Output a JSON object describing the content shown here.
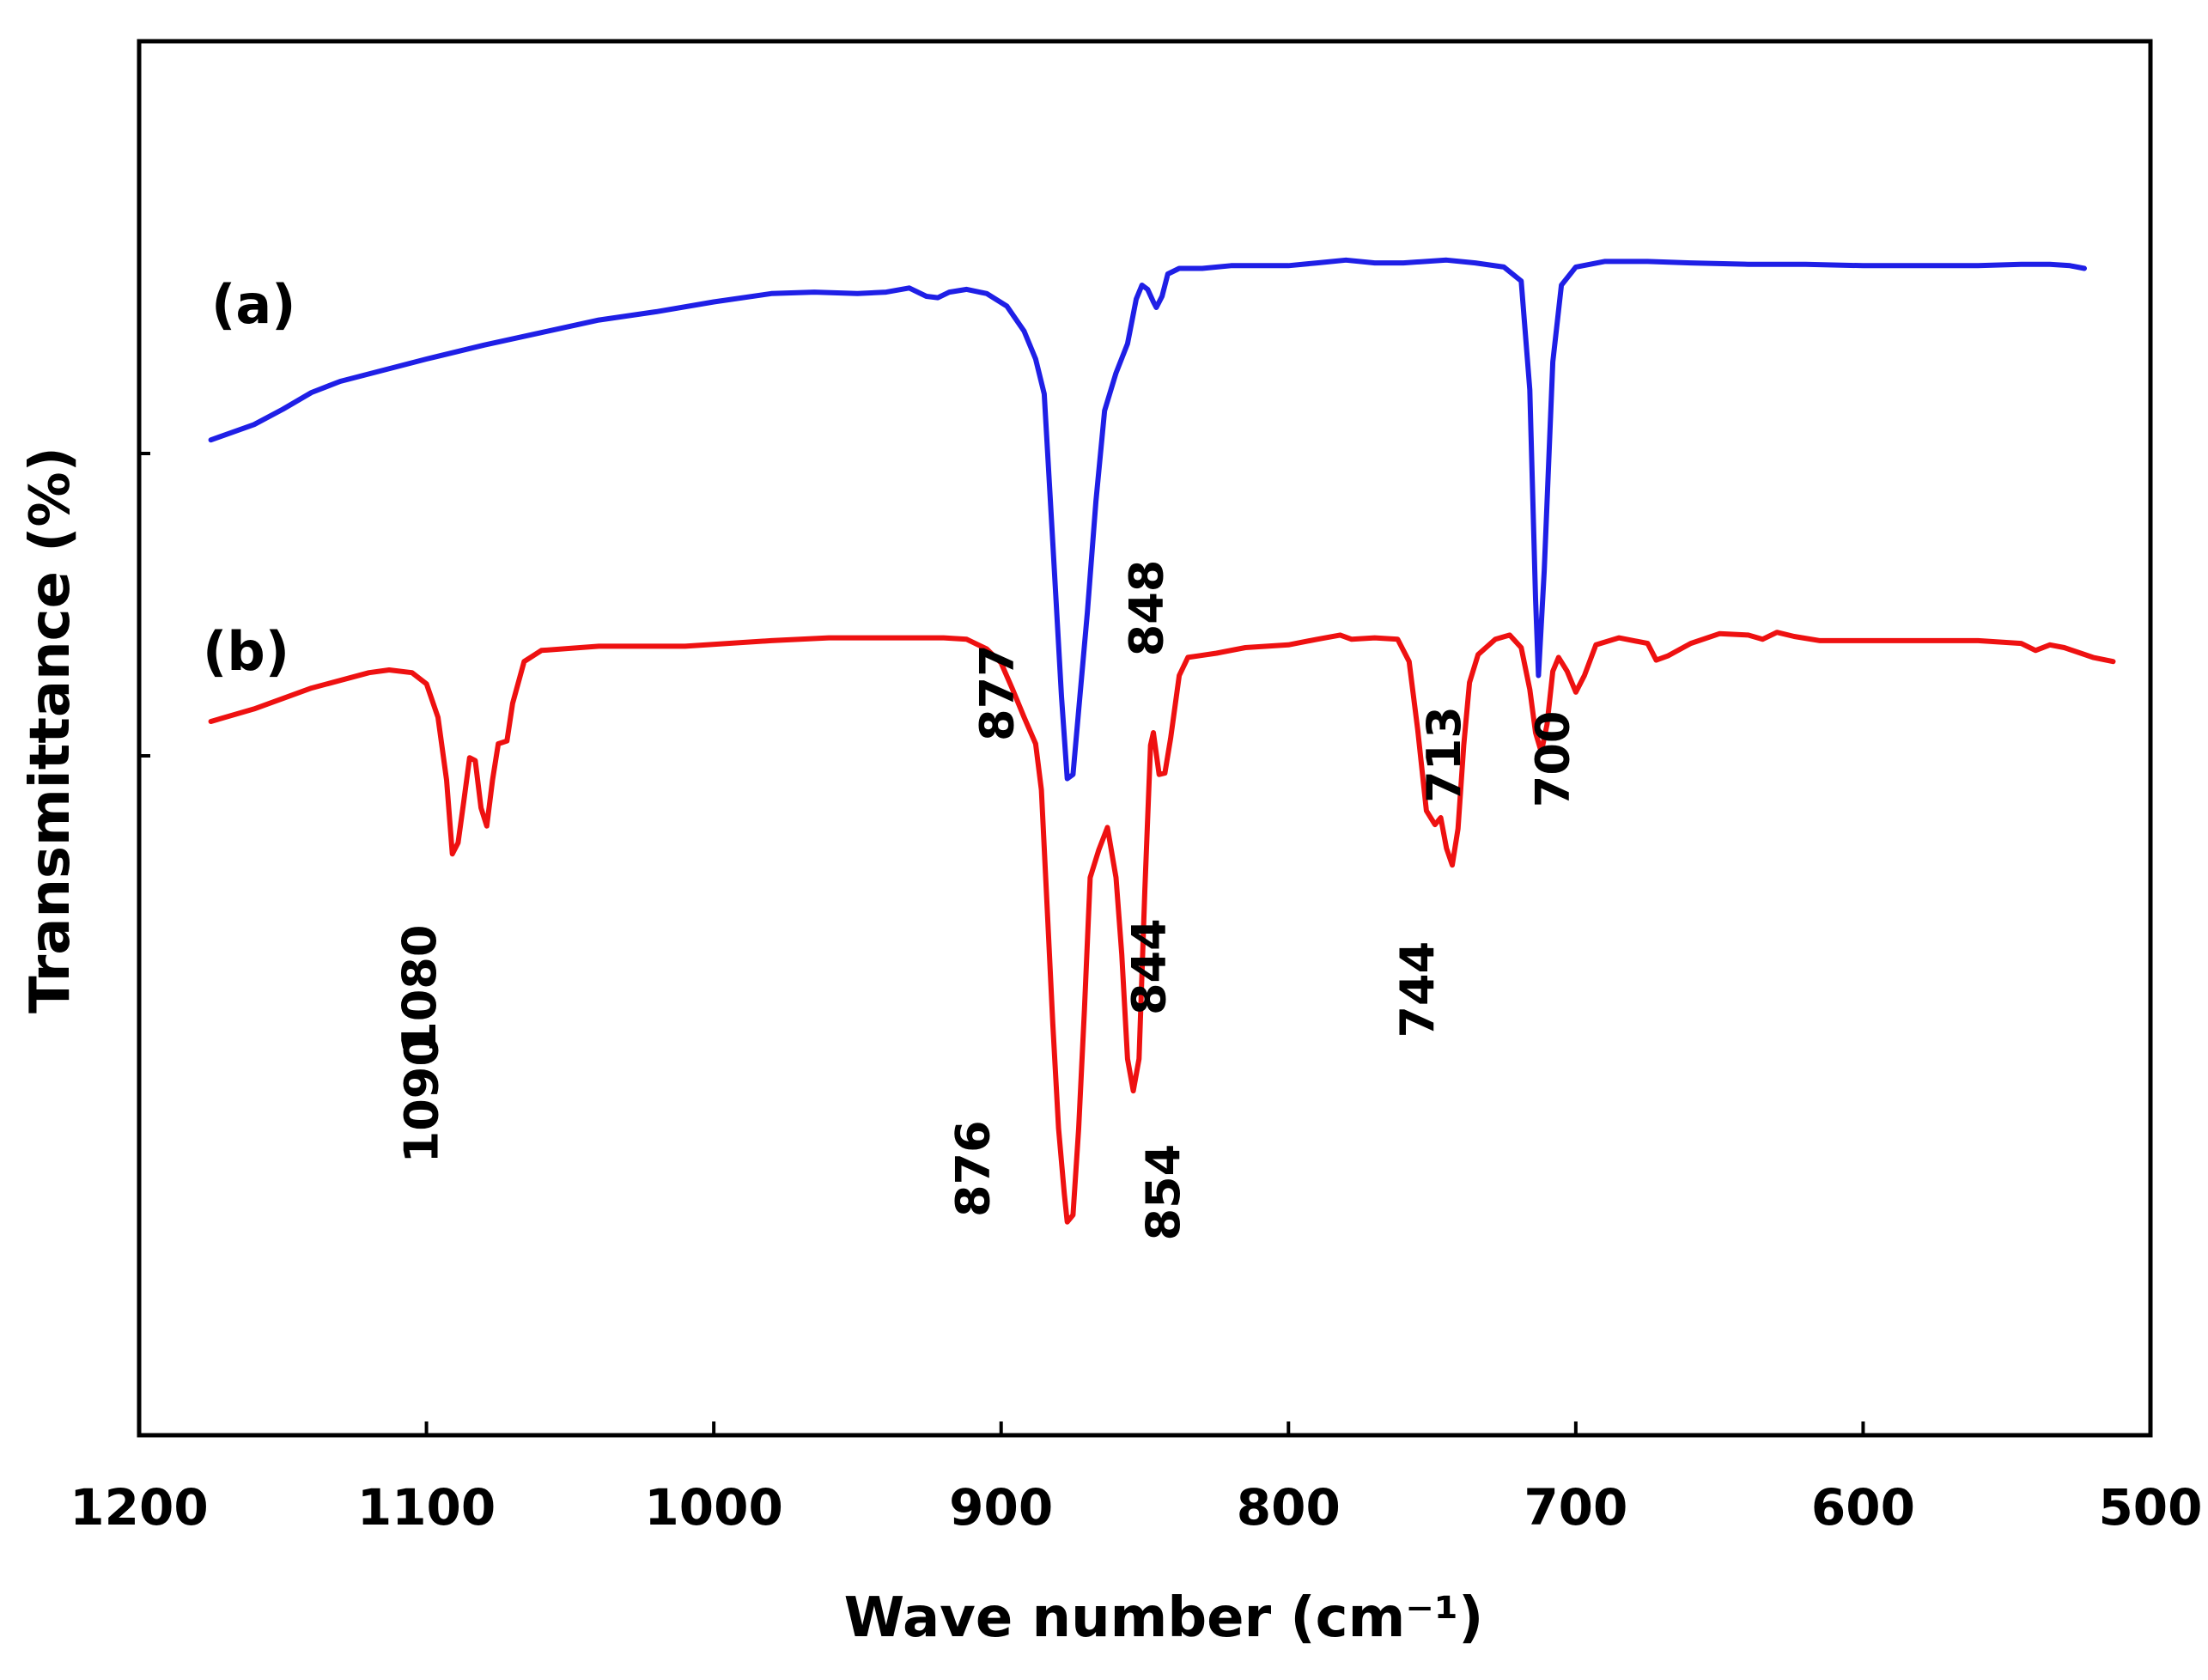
{
  "chart_data": {
    "type": "line",
    "title": "",
    "xlabel": "Wave number (cm⁻¹)",
    "ylabel": "Transmittance (%)",
    "xlim": [
      1200,
      500
    ],
    "ylim": [
      0,
      100
    ],
    "x_reversed": true,
    "grid": false,
    "xticks": [
      1200,
      1100,
      1000,
      900,
      800,
      700,
      600,
      500
    ],
    "xtick_labels": [
      "1200",
      "1100",
      "1000",
      "900",
      "800",
      "700",
      "600",
      "500"
    ],
    "colors": {
      "a": "#1f1fe6",
      "b": "#ee1111",
      "axis": "#000000"
    },
    "series": [
      {
        "name": "(a)",
        "color": "#1f1fe6",
        "points": [
          [
            1175,
            71.4
          ],
          [
            1160,
            72.5
          ],
          [
            1150,
            73.6
          ],
          [
            1140,
            74.8
          ],
          [
            1130,
            75.6
          ],
          [
            1115,
            76.4
          ],
          [
            1100,
            77.2
          ],
          [
            1080,
            78.2
          ],
          [
            1060,
            79.1
          ],
          [
            1040,
            80.0
          ],
          [
            1020,
            80.6
          ],
          [
            1000,
            81.3
          ],
          [
            980,
            81.9
          ],
          [
            965,
            82.0
          ],
          [
            950,
            81.9
          ],
          [
            940,
            82.0
          ],
          [
            932,
            82.3
          ],
          [
            926,
            81.7
          ],
          [
            922,
            81.6
          ],
          [
            918,
            82.0
          ],
          [
            912,
            82.2
          ],
          [
            905,
            81.9
          ],
          [
            898,
            81.0
          ],
          [
            892,
            79.2
          ],
          [
            888,
            77.2
          ],
          [
            885,
            74.7
          ],
          [
            882,
            64.0
          ],
          [
            879,
            53.0
          ],
          [
            877,
            47.1
          ],
          [
            875,
            47.4
          ],
          [
            873,
            52.0
          ],
          [
            870,
            59.0
          ],
          [
            867,
            67.0
          ],
          [
            864,
            73.5
          ],
          [
            860,
            76.2
          ],
          [
            856,
            78.3
          ],
          [
            853,
            81.5
          ],
          [
            851,
            82.5
          ],
          [
            849,
            82.2
          ],
          [
            847,
            81.3
          ],
          [
            846,
            80.9
          ],
          [
            844,
            81.7
          ],
          [
            842,
            83.3
          ],
          [
            838,
            83.7
          ],
          [
            830,
            83.7
          ],
          [
            820,
            83.9
          ],
          [
            800,
            83.9
          ],
          [
            790,
            84.1
          ],
          [
            780,
            84.3
          ],
          [
            770,
            84.1
          ],
          [
            760,
            84.1
          ],
          [
            745,
            84.3
          ],
          [
            735,
            84.1
          ],
          [
            725,
            83.8
          ],
          [
            719,
            82.8
          ],
          [
            716,
            75.0
          ],
          [
            714,
            60.0
          ],
          [
            713,
            54.5
          ],
          [
            711,
            62.0
          ],
          [
            708,
            77.0
          ],
          [
            705,
            82.5
          ],
          [
            700,
            83.8
          ],
          [
            690,
            84.2
          ],
          [
            675,
            84.2
          ],
          [
            660,
            84.1
          ],
          [
            640,
            84.0
          ],
          [
            620,
            84.0
          ],
          [
            600,
            83.9
          ],
          [
            580,
            83.9
          ],
          [
            560,
            83.9
          ],
          [
            545,
            84.0
          ],
          [
            535,
            84.0
          ],
          [
            528,
            83.9
          ],
          [
            523,
            83.7
          ]
        ]
      },
      {
        "name": "(b)",
        "color": "#ee1111",
        "points": [
          [
            1175,
            51.2
          ],
          [
            1160,
            52.1
          ],
          [
            1140,
            53.6
          ],
          [
            1120,
            54.7
          ],
          [
            1113,
            54.9
          ],
          [
            1105,
            54.7
          ],
          [
            1100,
            53.9
          ],
          [
            1096,
            51.5
          ],
          [
            1093,
            47.0
          ],
          [
            1091,
            41.7
          ],
          [
            1089,
            42.5
          ],
          [
            1087,
            45.5
          ],
          [
            1085,
            48.6
          ],
          [
            1083,
            48.4
          ],
          [
            1081,
            45.0
          ],
          [
            1079,
            43.7
          ],
          [
            1077,
            47.0
          ],
          [
            1075,
            49.6
          ],
          [
            1072,
            49.8
          ],
          [
            1070,
            52.5
          ],
          [
            1066,
            55.5
          ],
          [
            1060,
            56.3
          ],
          [
            1040,
            56.6
          ],
          [
            1010,
            56.6
          ],
          [
            980,
            57.0
          ],
          [
            960,
            57.2
          ],
          [
            940,
            57.2
          ],
          [
            920,
            57.2
          ],
          [
            912,
            57.1
          ],
          [
            905,
            56.4
          ],
          [
            900,
            55.4
          ],
          [
            896,
            53.5
          ],
          [
            892,
            51.5
          ],
          [
            888,
            49.6
          ],
          [
            886,
            46.3
          ],
          [
            884,
            38.0
          ],
          [
            882,
            29.5
          ],
          [
            880,
            22.0
          ],
          [
            878,
            17.3
          ],
          [
            877,
            15.3
          ],
          [
            875,
            15.8
          ],
          [
            873,
            22.0
          ],
          [
            871,
            30.5
          ],
          [
            869,
            40.0
          ],
          [
            866,
            42.0
          ],
          [
            863,
            43.6
          ],
          [
            860,
            40.0
          ],
          [
            858,
            34.5
          ],
          [
            856,
            27.0
          ],
          [
            854,
            24.7
          ],
          [
            852,
            27.0
          ],
          [
            850,
            39.0
          ],
          [
            848,
            49.5
          ],
          [
            847,
            50.4
          ],
          [
            845,
            47.4
          ],
          [
            843,
            47.5
          ],
          [
            841,
            50.0
          ],
          [
            838,
            54.5
          ],
          [
            835,
            55.8
          ],
          [
            825,
            56.1
          ],
          [
            815,
            56.5
          ],
          [
            800,
            56.7
          ],
          [
            790,
            57.1
          ],
          [
            782,
            57.4
          ],
          [
            778,
            57.1
          ],
          [
            770,
            57.2
          ],
          [
            762,
            57.1
          ],
          [
            758,
            55.5
          ],
          [
            755,
            50.6
          ],
          [
            752,
            44.8
          ],
          [
            749,
            43.8
          ],
          [
            747,
            44.3
          ],
          [
            745,
            42.1
          ],
          [
            743,
            40.9
          ],
          [
            741,
            43.5
          ],
          [
            739,
            49.5
          ],
          [
            737,
            54.0
          ],
          [
            734,
            56.0
          ],
          [
            728,
            57.1
          ],
          [
            723,
            57.4
          ],
          [
            719,
            56.5
          ],
          [
            716,
            53.5
          ],
          [
            714,
            50.4
          ],
          [
            712,
            49.0
          ],
          [
            710,
            51.0
          ],
          [
            708,
            54.8
          ],
          [
            706,
            55.8
          ],
          [
            703,
            54.8
          ],
          [
            700,
            53.3
          ],
          [
            697,
            54.5
          ],
          [
            693,
            56.7
          ],
          [
            685,
            57.2
          ],
          [
            675,
            56.8
          ],
          [
            672,
            55.6
          ],
          [
            668,
            55.9
          ],
          [
            660,
            56.8
          ],
          [
            650,
            57.5
          ],
          [
            640,
            57.4
          ],
          [
            635,
            57.1
          ],
          [
            630,
            57.6
          ],
          [
            624,
            57.3
          ],
          [
            615,
            57.0
          ],
          [
            600,
            57.0
          ],
          [
            580,
            57.0
          ],
          [
            560,
            57.0
          ],
          [
            545,
            56.8
          ],
          [
            540,
            56.3
          ],
          [
            535,
            56.7
          ],
          [
            530,
            56.5
          ],
          [
            520,
            55.8
          ],
          [
            513,
            55.5
          ]
        ]
      }
    ],
    "annotations": [
      {
        "series": "(a)",
        "text": "877",
        "x": 877
      },
      {
        "series": "(a)",
        "text": "848",
        "x": 848
      },
      {
        "series": "(a)",
        "text": "713",
        "x": 713
      },
      {
        "series": "(b)",
        "text": "1090",
        "x": 1090
      },
      {
        "series": "(b)",
        "text": "1080",
        "x": 1080
      },
      {
        "series": "(b)",
        "text": "876",
        "x": 876
      },
      {
        "series": "(b)",
        "text": "854",
        "x": 854
      },
      {
        "series": "(b)",
        "text": "844",
        "x": 844
      },
      {
        "series": "(b)",
        "text": "744",
        "x": 744
      },
      {
        "series": "(b)",
        "text": "700",
        "x": 700
      }
    ],
    "legend": [
      {
        "series": "(a)",
        "text": "(a)",
        "placement": "left of curve (a)"
      },
      {
        "series": "(b)",
        "text": "(b)",
        "placement": "left of curve (b)"
      }
    ]
  }
}
